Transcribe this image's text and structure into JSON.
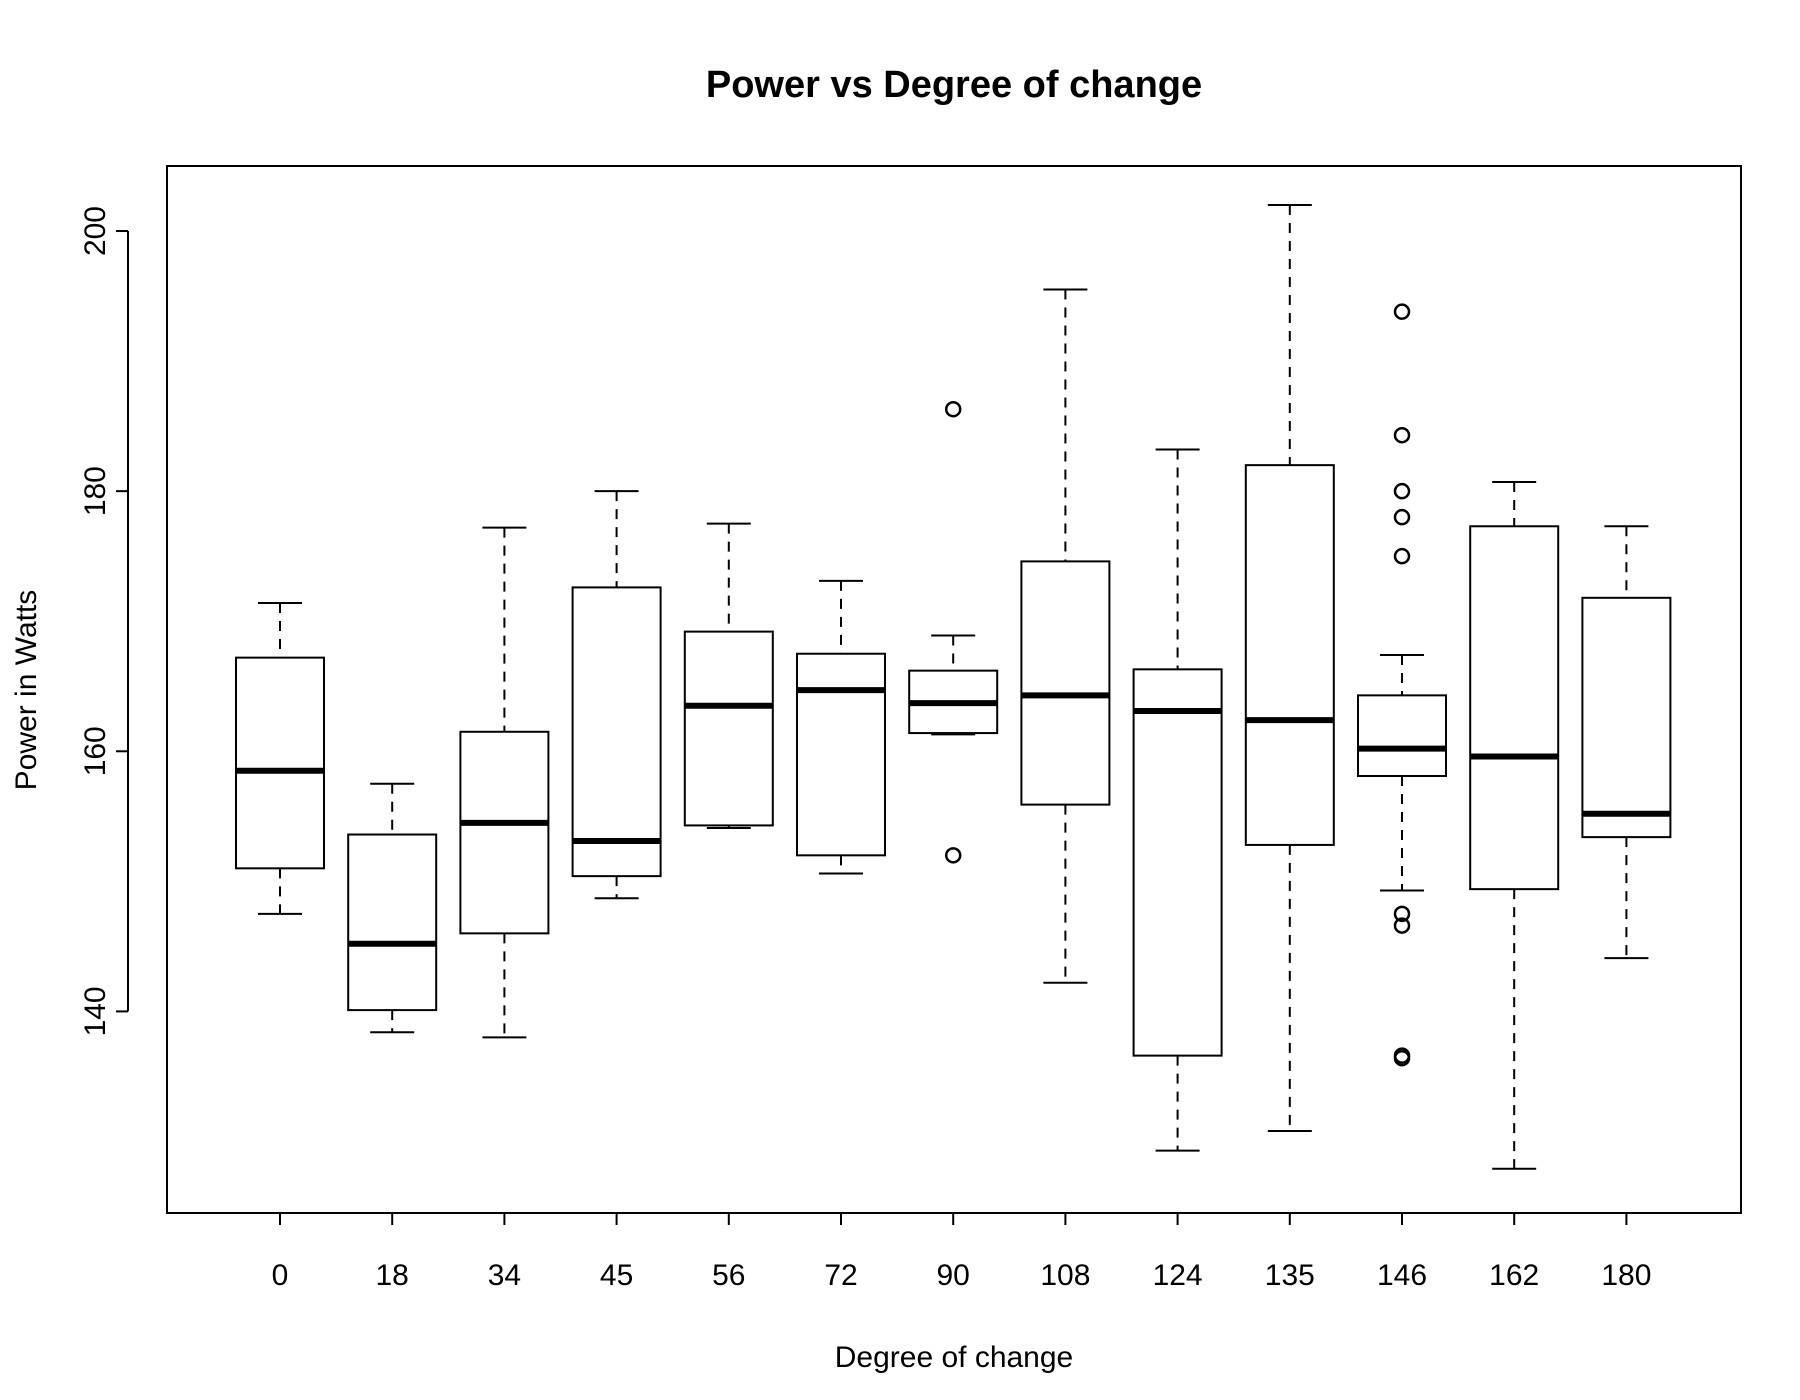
{
  "chart_data": {
    "type": "boxplot",
    "title": "Power vs Degree of change",
    "xlabel": "Degree of change",
    "ylabel": "Power in Watts",
    "ylim": [
      124.5,
      205
    ],
    "yticks": [
      140,
      160,
      180,
      200
    ],
    "grid": false,
    "categories": [
      "0",
      "18",
      "34",
      "45",
      "56",
      "72",
      "90",
      "108",
      "124",
      "135",
      "146",
      "162",
      "180"
    ],
    "boxes": [
      {
        "category": "0",
        "whisker_low": 147.5,
        "q1": 151.0,
        "median": 158.5,
        "q3": 167.2,
        "whisker_high": 171.4,
        "outliers": []
      },
      {
        "category": "18",
        "whisker_low": 138.4,
        "q1": 140.1,
        "median": 145.2,
        "q3": 153.6,
        "whisker_high": 157.5,
        "outliers": []
      },
      {
        "category": "34",
        "whisker_low": 138.0,
        "q1": 146.0,
        "median": 154.5,
        "q3": 161.5,
        "whisker_high": 177.2,
        "outliers": []
      },
      {
        "category": "45",
        "whisker_low": 148.7,
        "q1": 150.4,
        "median": 153.1,
        "q3": 172.6,
        "whisker_high": 180.0,
        "outliers": []
      },
      {
        "category": "56",
        "whisker_low": 154.1,
        "q1": 154.3,
        "median": 163.5,
        "q3": 169.2,
        "whisker_high": 177.5,
        "outliers": []
      },
      {
        "category": "72",
        "whisker_low": 150.6,
        "q1": 152.0,
        "median": 164.7,
        "q3": 167.5,
        "whisker_high": 173.1,
        "outliers": []
      },
      {
        "category": "90",
        "whisker_low": 161.3,
        "q1": 161.4,
        "median": 163.7,
        "q3": 166.2,
        "whisker_high": 168.9,
        "outliers": [
          186.3,
          152.0
        ]
      },
      {
        "category": "108",
        "whisker_low": 142.2,
        "q1": 155.9,
        "median": 164.3,
        "q3": 174.6,
        "whisker_high": 195.5,
        "outliers": []
      },
      {
        "category": "124",
        "whisker_low": 129.3,
        "q1": 136.6,
        "median": 163.1,
        "q3": 166.3,
        "whisker_high": 183.2,
        "outliers": []
      },
      {
        "category": "135",
        "whisker_low": 130.8,
        "q1": 152.8,
        "median": 162.4,
        "q3": 182.0,
        "whisker_high": 202.0,
        "outliers": []
      },
      {
        "category": "146",
        "whisker_low": 149.3,
        "q1": 158.1,
        "median": 160.2,
        "q3": 164.3,
        "whisker_high": 167.4,
        "outliers": [
          193.8,
          184.3,
          180.0,
          178.0,
          175.0,
          147.5,
          146.6,
          136.6,
          136.4
        ]
      },
      {
        "category": "162",
        "whisker_low": 127.9,
        "q1": 149.4,
        "median": 159.6,
        "q3": 177.3,
        "whisker_high": 180.7,
        "outliers": []
      },
      {
        "category": "180",
        "whisker_low": 144.1,
        "q1": 153.4,
        "median": 155.2,
        "q3": 171.8,
        "whisker_high": 177.3,
        "outliers": []
      }
    ]
  }
}
